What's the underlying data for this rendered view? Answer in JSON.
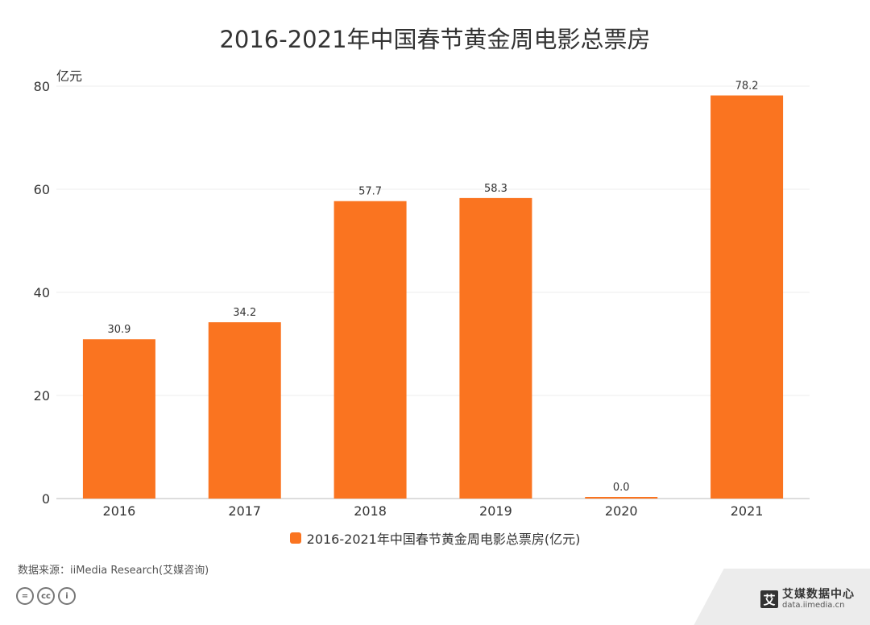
{
  "chart_data": {
    "type": "bar",
    "title": "2016-2021年中国春节黄金周电影总票房",
    "ylabel": "亿元",
    "categories": [
      "2016",
      "2017",
      "2018",
      "2019",
      "2020",
      "2021"
    ],
    "series": [
      {
        "name": "2016-2021年中国春节黄金周电影总票房(亿元)",
        "values": [
          30.9,
          34.2,
          57.7,
          58.3,
          0.0,
          78.2
        ],
        "labels": [
          "30.9",
          "34.2",
          "57.7",
          "58.3",
          "0.0",
          "78.2"
        ]
      }
    ],
    "ylim": [
      0,
      80
    ],
    "yticks": [
      0,
      20,
      40,
      60,
      80
    ],
    "grid": true,
    "legend_position": "bottom",
    "bar_color": "#fa7420"
  },
  "footer": {
    "source": "数据来源：iiMedia Research(艾媒咨询)",
    "brand_logo": "艾",
    "brand_name": "艾媒数据中心",
    "brand_url": "data.iimedia.cn",
    "cc_icons": [
      "=",
      "cc",
      "i"
    ]
  }
}
